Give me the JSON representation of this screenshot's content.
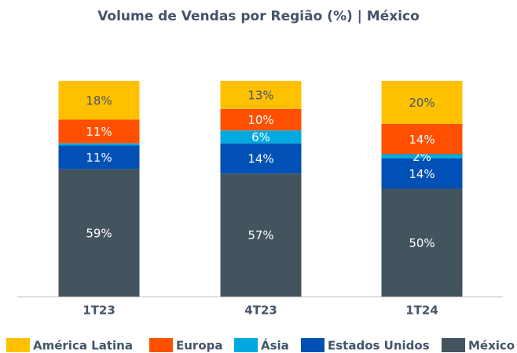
{
  "chart_data": {
    "type": "stacked_bar",
    "title": "Volume de Vendas por Região (%) | México",
    "categories": [
      "1T23",
      "4T23",
      "1T24"
    ],
    "series": [
      {
        "name": "México",
        "color": "#44545f",
        "values": [
          59,
          57,
          50
        ],
        "value_labels": [
          "59%",
          "57%",
          "50%"
        ]
      },
      {
        "name": "Estados Unidos",
        "color": "#0050b5",
        "values": [
          11,
          14,
          14
        ],
        "value_labels": [
          "11%",
          "14%",
          "14%"
        ]
      },
      {
        "name": "Ásia",
        "color": "#00a9e0",
        "values": [
          1,
          6,
          2
        ],
        "value_labels": [
          null,
          "6%",
          "2%"
        ]
      },
      {
        "name": "Europa",
        "color": "#fe5000",
        "values": [
          11,
          10,
          14
        ],
        "value_labels": [
          "11%",
          "10%",
          "14%"
        ]
      },
      {
        "name": "América Latina",
        "color": "#ffc000",
        "values": [
          18,
          13,
          20
        ],
        "value_labels": [
          "18%",
          "13%",
          "20%"
        ]
      }
    ]
  }
}
